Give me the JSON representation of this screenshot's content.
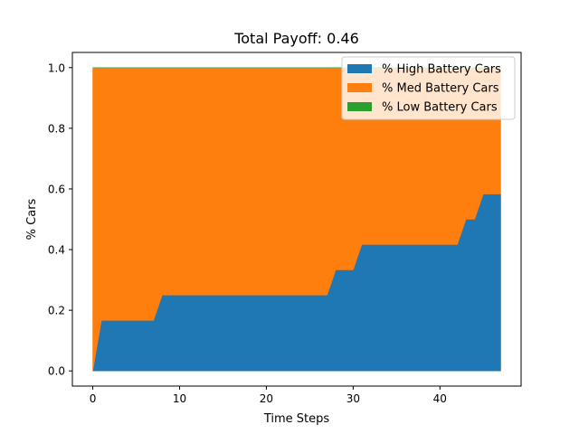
{
  "chart_data": {
    "type": "area",
    "stacked": true,
    "title": "Total Payoff: 0.46",
    "xlabel": "Time Steps",
    "ylabel": "% Cars",
    "xlim": [
      -2.35,
      49.35
    ],
    "ylim": [
      -0.05,
      1.05
    ],
    "xticks": [
      0,
      10,
      20,
      30,
      40
    ],
    "yticks": [
      0.0,
      0.2,
      0.4,
      0.6,
      0.8,
      1.0
    ],
    "xtick_labels": [
      "0",
      "10",
      "20",
      "30",
      "40"
    ],
    "ytick_labels": [
      "0.0",
      "0.2",
      "0.4",
      "0.6",
      "0.8",
      "1.0"
    ],
    "grid": false,
    "legend_position": "top-right",
    "x": [
      0,
      1,
      2,
      3,
      4,
      5,
      6,
      7,
      8,
      9,
      10,
      11,
      12,
      13,
      14,
      15,
      16,
      17,
      18,
      19,
      20,
      21,
      22,
      23,
      24,
      25,
      26,
      27,
      28,
      29,
      30,
      31,
      32,
      33,
      34,
      35,
      36,
      37,
      38,
      39,
      40,
      41,
      42,
      43,
      44,
      45,
      46,
      47
    ],
    "series": [
      {
        "name": "% High Battery Cars",
        "color": "#1f77b4",
        "values": [
          0.0,
          0.1667,
          0.1667,
          0.1667,
          0.1667,
          0.1667,
          0.1667,
          0.1667,
          0.25,
          0.25,
          0.25,
          0.25,
          0.25,
          0.25,
          0.25,
          0.25,
          0.25,
          0.25,
          0.25,
          0.25,
          0.25,
          0.25,
          0.25,
          0.25,
          0.25,
          0.25,
          0.25,
          0.25,
          0.3333,
          0.3333,
          0.3333,
          0.4167,
          0.4167,
          0.4167,
          0.4167,
          0.4167,
          0.4167,
          0.4167,
          0.4167,
          0.4167,
          0.4167,
          0.4167,
          0.4167,
          0.5,
          0.5,
          0.5833,
          0.5833,
          0.5833
        ]
      },
      {
        "name": "% Med Battery Cars",
        "color": "#ff7f0e",
        "values": [
          1.0,
          0.8333,
          0.8333,
          0.8333,
          0.8333,
          0.8333,
          0.8333,
          0.8333,
          0.75,
          0.75,
          0.75,
          0.75,
          0.75,
          0.75,
          0.75,
          0.75,
          0.75,
          0.75,
          0.75,
          0.75,
          0.75,
          0.75,
          0.75,
          0.75,
          0.75,
          0.75,
          0.75,
          0.75,
          0.6667,
          0.6667,
          0.6667,
          0.5833,
          0.5833,
          0.5833,
          0.5833,
          0.5833,
          0.5833,
          0.5833,
          0.5833,
          0.5833,
          0.5833,
          0.5833,
          0.5833,
          0.5,
          0.5,
          0.4167,
          0.4167,
          0.4167
        ]
      },
      {
        "name": "% Low Battery Cars",
        "color": "#2ca02c",
        "values": [
          0,
          0,
          0,
          0,
          0,
          0,
          0,
          0,
          0,
          0,
          0,
          0,
          0,
          0,
          0,
          0,
          0,
          0,
          0,
          0,
          0,
          0,
          0,
          0,
          0,
          0,
          0,
          0,
          0,
          0,
          0,
          0,
          0,
          0,
          0,
          0,
          0,
          0,
          0,
          0,
          0,
          0,
          0,
          0,
          0,
          0,
          0,
          0
        ]
      }
    ]
  }
}
